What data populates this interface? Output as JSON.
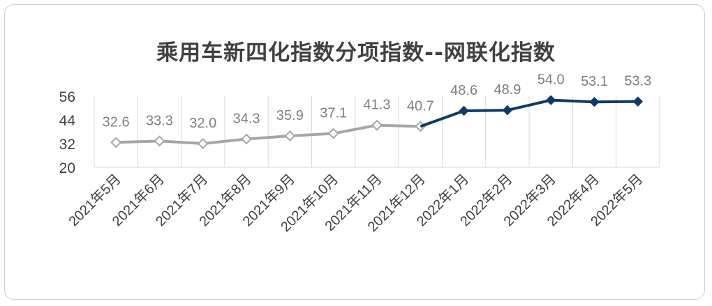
{
  "chart_data": {
    "type": "line",
    "title": "乘用车新四化指数分项指数--网联化指数",
    "categories": [
      "2021年5月",
      "2021年6月",
      "2021年7月",
      "2021年8月",
      "2021年9月",
      "2021年10月",
      "2021年11月",
      "2021年12月",
      "2022年1月",
      "2022年2月",
      "2022年3月",
      "2022年4月",
      "2022年5月"
    ],
    "series": [
      {
        "values": [
          32.6,
          33.3,
          32.0,
          34.3,
          35.9,
          37.1,
          41.3,
          40.7,
          null,
          null,
          null,
          null,
          null
        ],
        "color": "#a6a6a6",
        "marker": "diamond-hollow"
      },
      {
        "values": [
          null,
          null,
          null,
          null,
          null,
          null,
          null,
          40.7,
          48.6,
          48.9,
          54.0,
          53.1,
          53.3
        ],
        "color": "#0e3a68",
        "marker": "diamond-filled"
      }
    ],
    "data_labels": [
      "32.6",
      "33.3",
      "32.0",
      "34.3",
      "35.9",
      "37.1",
      "41.3",
      "40.7",
      "48.6",
      "48.9",
      "54.0",
      "53.1",
      "53.3"
    ],
    "y_ticks": [
      "20",
      "32",
      "44",
      "56"
    ],
    "ylim": [
      20,
      56
    ],
    "grid": "vertical",
    "legend": "none"
  }
}
